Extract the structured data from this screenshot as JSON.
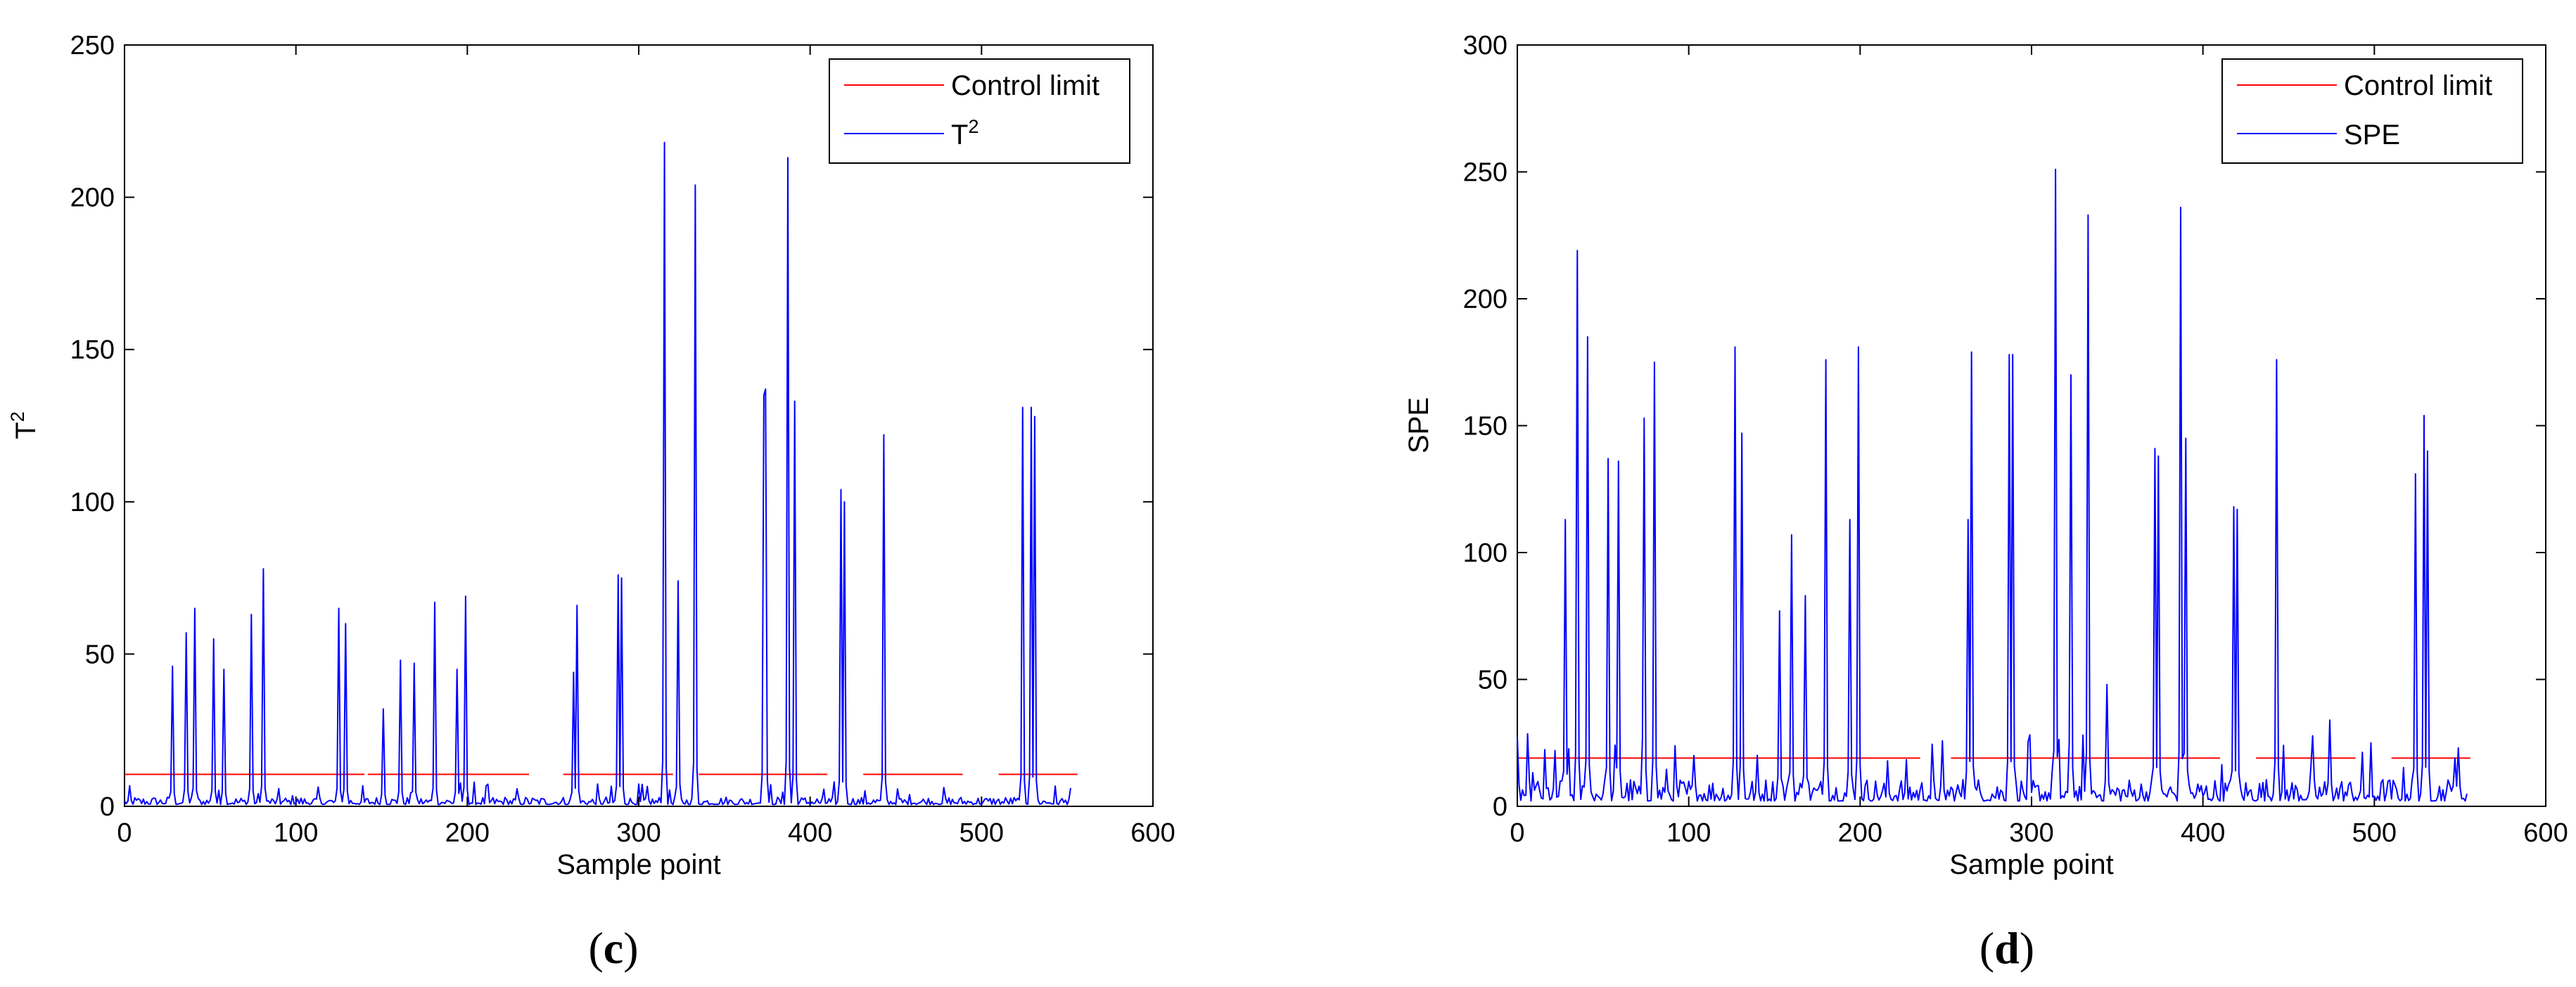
{
  "chart_data": [
    {
      "type": "line",
      "caption_open": "(",
      "caption_letter": "c",
      "caption_close": ")",
      "xlabel": "Sample point",
      "ylabel": "T",
      "ylabel_sup": "2",
      "xlim": [
        0,
        600
      ],
      "ylim": [
        0,
        250
      ],
      "xticks": [
        0,
        100,
        200,
        300,
        400,
        500,
        600
      ],
      "yticks": [
        0,
        50,
        100,
        150,
        200,
        250
      ],
      "grid": false,
      "legend_position": "top-right",
      "series": [
        {
          "name": "Control limit",
          "color": "#ff0000",
          "segments": [
            [
              0,
              140,
              10.5
            ],
            [
              142,
              236,
              10.5
            ],
            [
              256,
              320,
              10.5
            ],
            [
              335,
              410,
              10.5
            ],
            [
              431,
              489,
              10.5
            ],
            [
              510,
              556,
              10.5
            ]
          ]
        },
        {
          "name": "T",
          "name_sup": "2",
          "color": "#0000ff",
          "base": 2,
          "length": 553,
          "peaks": [
            [
              28,
              46
            ],
            [
              36,
              57
            ],
            [
              41,
              65
            ],
            [
              52,
              55
            ],
            [
              58,
              45
            ],
            [
              74,
              63
            ],
            [
              81,
              78
            ],
            [
              125,
              65
            ],
            [
              129,
              60
            ],
            [
              151,
              32
            ],
            [
              161,
              48
            ],
            [
              169,
              47
            ],
            [
              181,
              67
            ],
            [
              194,
              45
            ],
            [
              199,
              69
            ],
            [
              262,
              44
            ],
            [
              264,
              66
            ],
            [
              288,
              76
            ],
            [
              290,
              75
            ],
            [
              315,
              218
            ],
            [
              323,
              74
            ],
            [
              333,
              204
            ],
            [
              373,
              135
            ],
            [
              374,
              137
            ],
            [
              387,
              213
            ],
            [
              391,
              133
            ],
            [
              418,
              104
            ],
            [
              420,
              100
            ],
            [
              443,
              122
            ],
            [
              524,
              131
            ],
            [
              529,
              131
            ],
            [
              531,
              128
            ],
            [
              552,
              6
            ]
          ]
        }
      ]
    },
    {
      "type": "line",
      "caption_open": "(",
      "caption_letter": "d",
      "caption_close": ")",
      "xlabel": "Sample point",
      "ylabel": "SPE",
      "xlim": [
        0,
        600
      ],
      "ylim": [
        0,
        300
      ],
      "xticks": [
        0,
        100,
        200,
        300,
        400,
        500,
        600
      ],
      "yticks": [
        0,
        50,
        100,
        150,
        200,
        250,
        300
      ],
      "grid": false,
      "legend_position": "top-right",
      "series": [
        {
          "name": "Control limit",
          "color": "#ff0000",
          "segments": [
            [
              0,
              235,
              19
            ],
            [
              253,
              410,
              19
            ],
            [
              431,
              489,
              19
            ],
            [
              510,
              556,
              19
            ]
          ]
        },
        {
          "name": "SPE",
          "color": "#0000ff",
          "base": 7,
          "length": 555,
          "peaks": [
            [
              28,
              113
            ],
            [
              35,
              219
            ],
            [
              41,
              185
            ],
            [
              53,
              137
            ],
            [
              59,
              136
            ],
            [
              74,
              153
            ],
            [
              80,
              175
            ],
            [
              103,
              20
            ],
            [
              127,
              181
            ],
            [
              131,
              147
            ],
            [
              153,
              77
            ],
            [
              160,
              107
            ],
            [
              168,
              83
            ],
            [
              180,
              176
            ],
            [
              194,
              113
            ],
            [
              199,
              181
            ],
            [
              263,
              113
            ],
            [
              265,
              179
            ],
            [
              287,
              178
            ],
            [
              289,
              178
            ],
            [
              314,
              251
            ],
            [
              323,
              170
            ],
            [
              333,
              233
            ],
            [
              344,
              48
            ],
            [
              372,
              141
            ],
            [
              374,
              138
            ],
            [
              387,
              236
            ],
            [
              390,
              145
            ],
            [
              418,
              118
            ],
            [
              420,
              117
            ],
            [
              443,
              176
            ],
            [
              474,
              34
            ],
            [
              524,
              131
            ],
            [
              529,
              154
            ],
            [
              531,
              140
            ],
            [
              547,
              19
            ]
          ]
        }
      ]
    }
  ]
}
